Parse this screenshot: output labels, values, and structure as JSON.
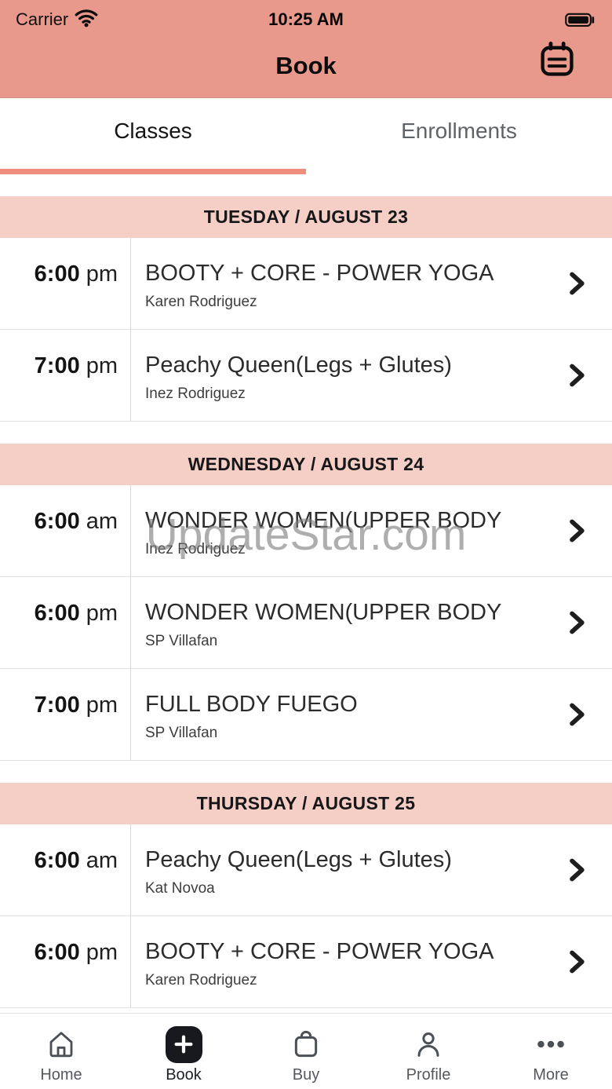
{
  "status_bar": {
    "carrier": "Carrier",
    "time": "10:25 AM"
  },
  "header": {
    "title": "Book",
    "calendar_icon": "calendar-icon"
  },
  "tabs": [
    {
      "label": "Classes",
      "active": true
    },
    {
      "label": "Enrollments",
      "active": false
    }
  ],
  "sections": [
    {
      "header": "TUESDAY / AUGUST 23",
      "classes": [
        {
          "time": "6:00",
          "meridiem": "pm",
          "title": "BOOTY + CORE - POWER YOGA",
          "instructor": "Karen Rodriguez"
        },
        {
          "time": "7:00",
          "meridiem": "pm",
          "title": "Peachy Queen(Legs + Glutes)",
          "instructor": "Inez Rodriguez"
        }
      ]
    },
    {
      "header": "WEDNESDAY / AUGUST 24",
      "classes": [
        {
          "time": "6:00",
          "meridiem": "am",
          "title": "WONDER WOMEN(UPPER BODY",
          "instructor": "Inez Rodriguez"
        },
        {
          "time": "6:00",
          "meridiem": "pm",
          "title": "WONDER WOMEN(UPPER BODY",
          "instructor": "SP Villafan"
        },
        {
          "time": "7:00",
          "meridiem": "pm",
          "title": "FULL BODY FUEGO",
          "instructor": "SP Villafan"
        }
      ]
    },
    {
      "header": "THURSDAY / AUGUST 25",
      "classes": [
        {
          "time": "6:00",
          "meridiem": "am",
          "title": "Peachy Queen(Legs + Glutes)",
          "instructor": "Kat Novoa"
        },
        {
          "time": "6:00",
          "meridiem": "pm",
          "title": "BOOTY + CORE - POWER YOGA",
          "instructor": "Karen Rodriguez"
        }
      ]
    }
  ],
  "watermark": "UpdateStar.com",
  "bottom_nav": [
    {
      "label": "Home",
      "icon": "home-icon",
      "active": false
    },
    {
      "label": "Book",
      "icon": "plus-icon",
      "active": true
    },
    {
      "label": "Buy",
      "icon": "bag-icon",
      "active": false
    },
    {
      "label": "Profile",
      "icon": "person-icon",
      "active": false
    },
    {
      "label": "More",
      "icon": "more-icon",
      "active": false
    }
  ],
  "colors": {
    "header_bg": "#e9998b",
    "day_band_bg": "#f5cfc6",
    "tab_underline": "#ee8e7c",
    "nav_active_btn": "#17191e"
  }
}
